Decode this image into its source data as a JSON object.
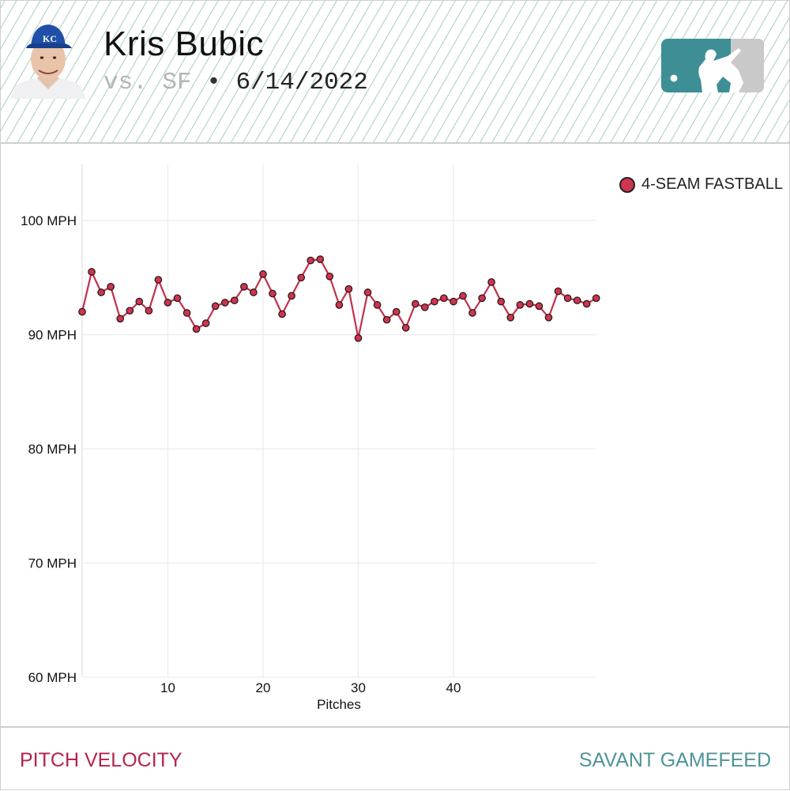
{
  "header": {
    "player_name": "Kris Bubic",
    "opponent": "vs. SF",
    "separator": "•",
    "date": "6/14/2022",
    "avatar_icon": "player-headshot-kc",
    "logo_icon": "mlb-logo"
  },
  "legend": {
    "label": "4-SEAM FASTBALL",
    "color": "#d0344f"
  },
  "footer": {
    "left_label": "PITCH VELOCITY",
    "right_label": "SAVANT GAMEFEED",
    "left_color": "#b4244a",
    "right_color": "#4f9498"
  },
  "chart_data": {
    "type": "line",
    "title": "",
    "xlabel": "Pitches",
    "ylabel": "",
    "ylim": [
      60,
      105
    ],
    "xlim": [
      1,
      55
    ],
    "grid": true,
    "legend_position": "top-right",
    "yticks": [
      {
        "value": 100,
        "label": "100 MPH"
      },
      {
        "value": 90,
        "label": "90 MPH"
      },
      {
        "value": 80,
        "label": "80 MPH"
      },
      {
        "value": 70,
        "label": "70 MPH"
      },
      {
        "value": 60,
        "label": "60 MPH"
      }
    ],
    "xticks": [
      {
        "value": 10,
        "label": "10"
      },
      {
        "value": 20,
        "label": "20"
      },
      {
        "value": 30,
        "label": "30"
      },
      {
        "value": 40,
        "label": "40"
      }
    ],
    "series": [
      {
        "name": "4-SEAM FASTBALL",
        "color": "#d0344f",
        "x": [
          1,
          2,
          3,
          4,
          5,
          6,
          7,
          8,
          9,
          10,
          11,
          12,
          13,
          14,
          15,
          16,
          17,
          18,
          19,
          20,
          21,
          22,
          23,
          24,
          25,
          26,
          27,
          28,
          29,
          30,
          31,
          32,
          33,
          34,
          35,
          36,
          37,
          38,
          39,
          40,
          41,
          42,
          43,
          44,
          45,
          46,
          47,
          48,
          49,
          50,
          51,
          52,
          53,
          54,
          55
        ],
        "values": [
          92.0,
          95.5,
          93.7,
          94.2,
          91.4,
          92.1,
          92.9,
          92.1,
          94.8,
          92.8,
          93.2,
          91.9,
          90.5,
          91.0,
          92.5,
          92.8,
          93.0,
          94.2,
          93.7,
          95.3,
          93.6,
          91.8,
          93.4,
          95.0,
          96.5,
          96.6,
          95.1,
          92.6,
          94.0,
          89.7,
          93.7,
          92.6,
          91.3,
          92.0,
          90.6,
          92.7,
          92.4,
          92.9,
          93.2,
          92.9,
          93.4,
          91.9,
          93.2,
          94.6,
          92.9,
          91.5,
          92.6,
          92.7,
          92.5,
          91.5,
          93.8,
          93.2,
          93.0,
          92.7,
          93.2
        ]
      }
    ]
  }
}
